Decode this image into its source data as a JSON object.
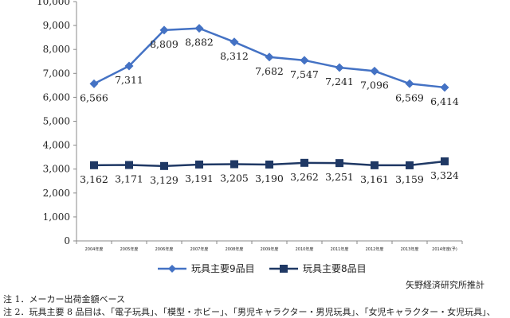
{
  "chart_data": {
    "type": "line",
    "title": "",
    "xlabel": "",
    "ylabel": "",
    "ylim": [
      0,
      10000
    ],
    "y_ticks": [
      "0",
      "1,000",
      "2,000",
      "3,000",
      "4,000",
      "5,000",
      "6,000",
      "7,000",
      "8,000",
      "9,000",
      "10,000"
    ],
    "categories": [
      "2004年度",
      "2005年度",
      "2006年度",
      "2007年度",
      "2008年度",
      "2009年度",
      "2010年度",
      "2011年度",
      "2012年度",
      "2013年度",
      "2014年度(予)"
    ],
    "series": [
      {
        "name": "玩具主要9品目",
        "marker": "diamond",
        "color": "#4472c4",
        "values": [
          6566,
          7311,
          8809,
          8882,
          8312,
          7682,
          7547,
          7241,
          7096,
          6569,
          6414
        ],
        "labels": [
          "6,566",
          "7,311",
          "8,809",
          "8,882",
          "8,312",
          "7,682",
          "7,547",
          "7,241",
          "7,096",
          "6,569",
          "6,414"
        ]
      },
      {
        "name": "玩具主要8品目",
        "marker": "square",
        "color": "#1f3864",
        "values": [
          3162,
          3171,
          3129,
          3191,
          3205,
          3190,
          3262,
          3251,
          3161,
          3159,
          3324
        ],
        "labels": [
          "3,162",
          "3,171",
          "3,129",
          "3,191",
          "3,205",
          "3,190",
          "3,262",
          "3,251",
          "3,161",
          "3,159",
          "3,324"
        ]
      }
    ],
    "grid": false,
    "legend_placement": "bottom"
  },
  "source": "矢野経済研究所推計",
  "notes": [
    "注 1．メーカー出荷金額ベース",
    "注 2．玩具主要 8 品目は、「電子玩具」、「模型・ホビー」、「男児キャラクター・男児玩具」、「女児キャラクター・女児玩具」、"
  ]
}
